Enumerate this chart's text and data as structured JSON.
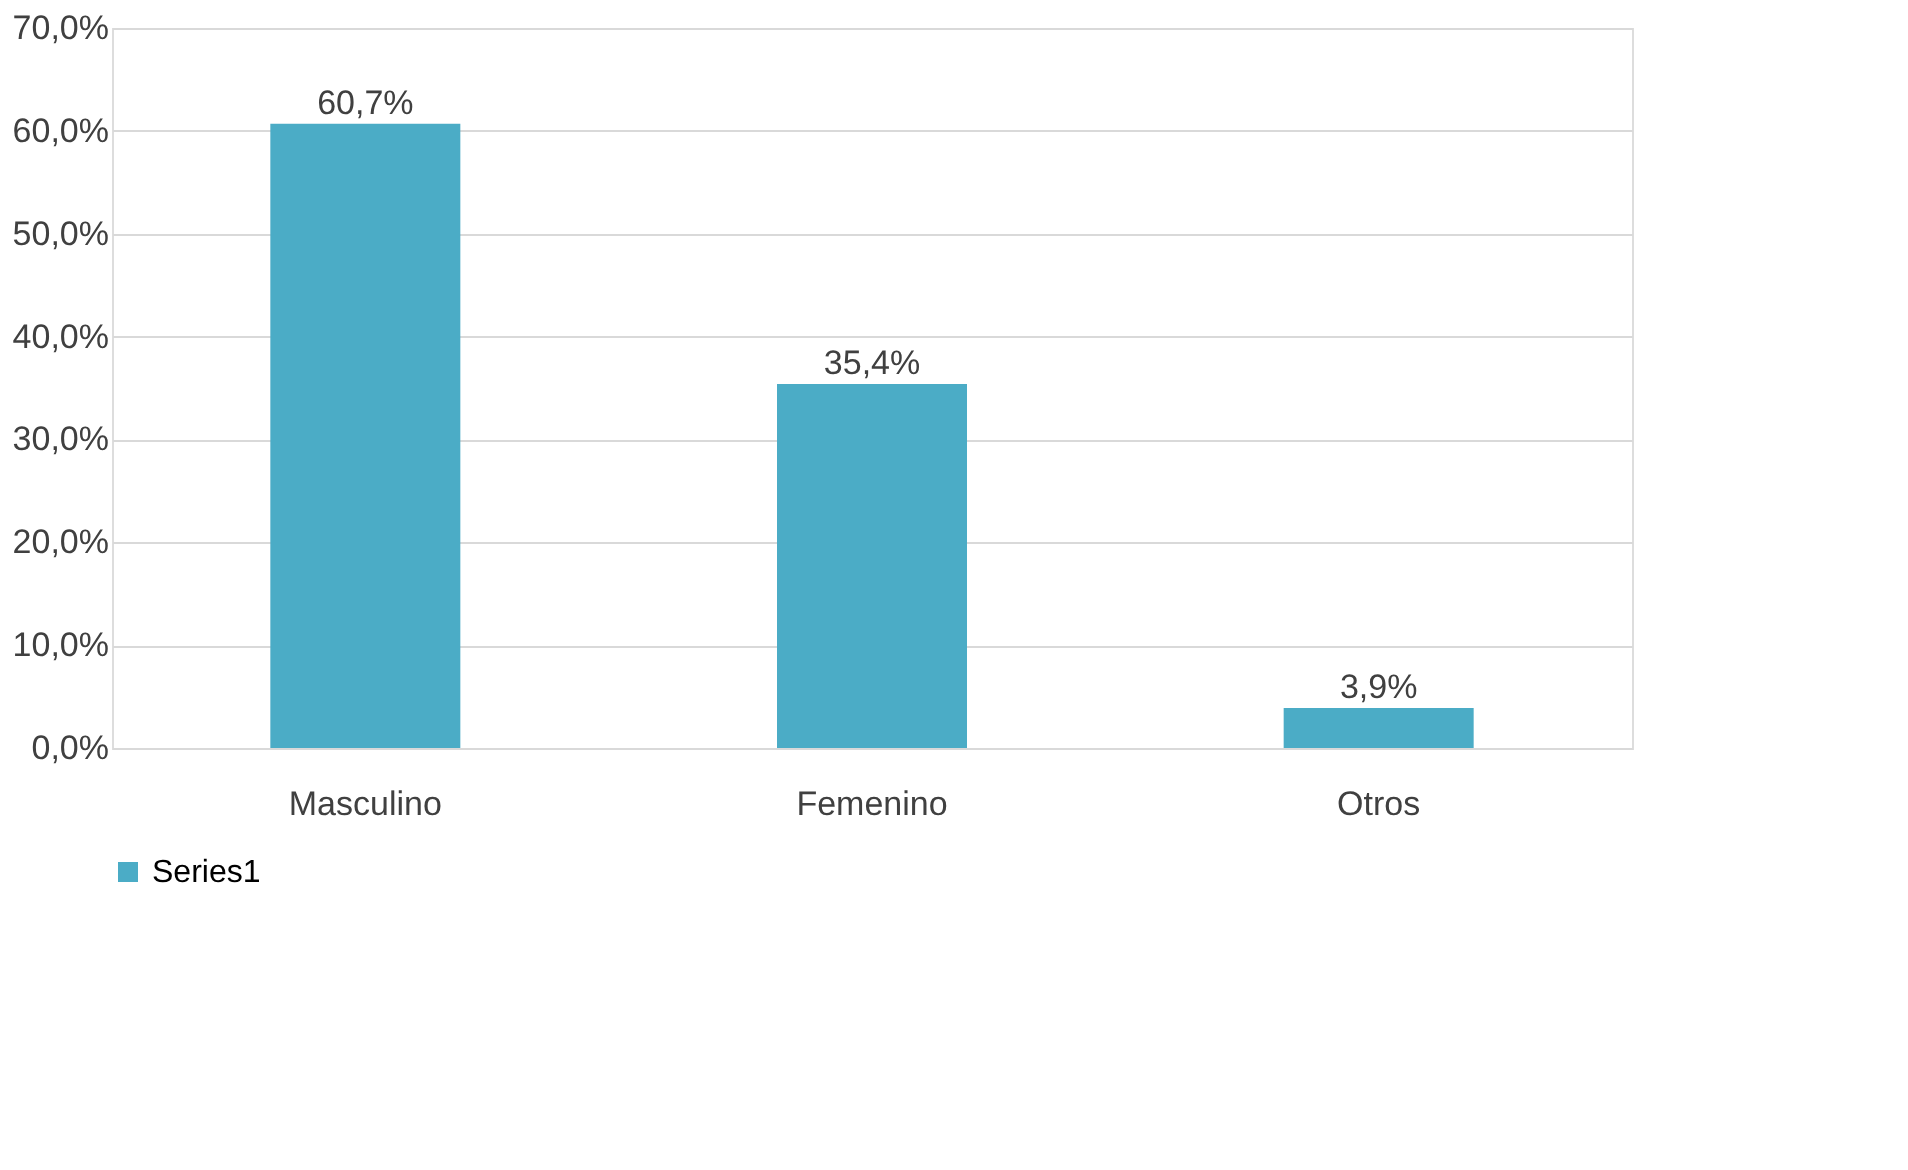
{
  "chart_data": {
    "type": "bar",
    "categories": [
      "Masculino",
      "Femenino",
      "Otros"
    ],
    "series": [
      {
        "name": "Series1",
        "color": "#4bacc6",
        "values": [
          60.7,
          35.4,
          3.9
        ],
        "value_labels": [
          "60,7%",
          "35,4%",
          "3,9%"
        ]
      }
    ],
    "ylim": [
      0,
      70
    ],
    "yticks": [
      {
        "value": 0,
        "label": "0,0%"
      },
      {
        "value": 10,
        "label": "10,0%"
      },
      {
        "value": 20,
        "label": "20,0%"
      },
      {
        "value": 30,
        "label": "30,0%"
      },
      {
        "value": 40,
        "label": "40,0%"
      },
      {
        "value": 50,
        "label": "50,0%"
      },
      {
        "value": 60,
        "label": "60,0%"
      },
      {
        "value": 70,
        "label": "70,0%"
      }
    ],
    "grid": "y",
    "legend": "bottom"
  }
}
